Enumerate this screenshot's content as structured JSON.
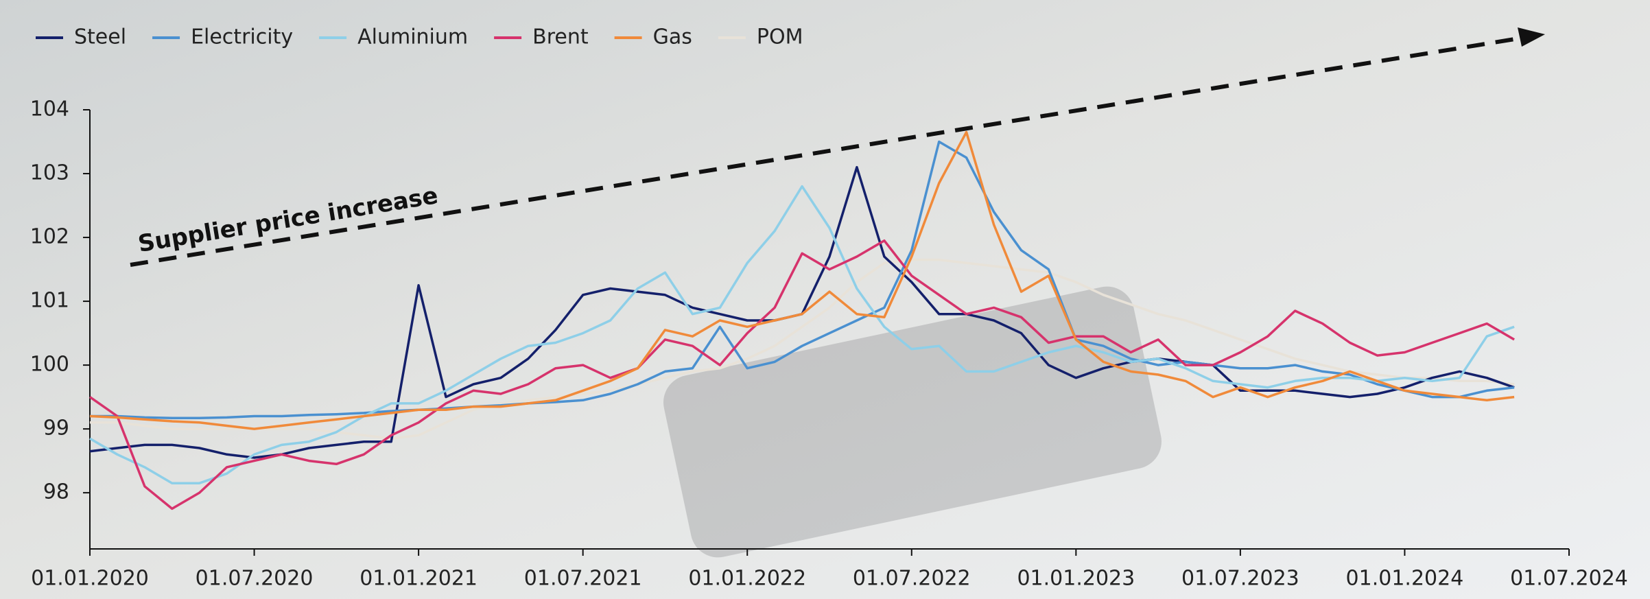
{
  "chart_data": {
    "type": "line",
    "annotation": "Supplier price increase",
    "x": [
      "01.01.2020",
      "01.02.2020",
      "01.03.2020",
      "01.04.2020",
      "01.05.2020",
      "01.06.2020",
      "01.07.2020",
      "01.08.2020",
      "01.09.2020",
      "01.10.2020",
      "01.11.2020",
      "01.12.2020",
      "01.01.2021",
      "01.02.2021",
      "01.03.2021",
      "01.04.2021",
      "01.05.2021",
      "01.06.2021",
      "01.07.2021",
      "01.08.2021",
      "01.09.2021",
      "01.10.2021",
      "01.11.2021",
      "01.12.2021",
      "01.01.2022",
      "01.02.2022",
      "01.03.2022",
      "01.04.2022",
      "01.05.2022",
      "01.06.2022",
      "01.07.2022",
      "01.08.2022",
      "01.09.2022",
      "01.10.2022",
      "01.11.2022",
      "01.12.2022",
      "01.01.2023",
      "01.02.2023",
      "01.03.2023",
      "01.04.2023",
      "01.05.2023",
      "01.06.2023",
      "01.07.2023",
      "01.08.2023",
      "01.09.2023",
      "01.10.2023",
      "01.11.2023",
      "01.12.2023",
      "01.01.2024",
      "01.02.2024",
      "01.03.2024",
      "01.04.2024",
      "01.05.2024"
    ],
    "series": [
      {
        "name": "Steel",
        "color": "#14206b",
        "values": [
          98.65,
          98.7,
          98.75,
          98.75,
          98.7,
          98.6,
          98.55,
          98.6,
          98.7,
          98.75,
          98.8,
          98.8,
          101.25,
          99.5,
          99.7,
          99.8,
          100.1,
          100.55,
          101.1,
          101.2,
          101.15,
          101.1,
          100.9,
          100.8,
          100.7,
          100.7,
          100.8,
          101.7,
          103.1,
          101.7,
          101.3,
          100.8,
          100.8,
          100.7,
          100.5,
          100.0,
          99.8,
          99.95,
          100.05,
          100.1,
          100.05,
          100.0,
          99.6,
          99.6,
          99.6,
          99.55,
          99.5,
          99.55,
          99.65,
          99.8,
          99.9,
          99.8,
          99.65
        ]
      },
      {
        "name": "Electricity",
        "color": "#4a90d0",
        "values": [
          99.2,
          99.2,
          99.18,
          99.17,
          99.17,
          99.18,
          99.2,
          99.2,
          99.22,
          99.23,
          99.25,
          99.28,
          99.3,
          99.32,
          99.35,
          99.37,
          99.4,
          99.42,
          99.45,
          99.55,
          99.7,
          99.9,
          99.95,
          100.6,
          99.95,
          100.05,
          100.3,
          100.5,
          100.7,
          100.9,
          101.8,
          103.5,
          103.25,
          102.4,
          101.8,
          101.5,
          100.4,
          100.3,
          100.1,
          100.0,
          100.05,
          100.0,
          99.95,
          99.95,
          100.0,
          99.9,
          99.85,
          99.7,
          99.6,
          99.5,
          99.5,
          99.6,
          99.65
        ]
      },
      {
        "name": "Aluminium",
        "color": "#8ecfe8",
        "values": [
          98.85,
          98.6,
          98.4,
          98.15,
          98.15,
          98.3,
          98.6,
          98.75,
          98.8,
          98.95,
          99.2,
          99.4,
          99.4,
          99.6,
          99.85,
          100.1,
          100.3,
          100.35,
          100.5,
          100.7,
          101.2,
          101.45,
          100.8,
          100.9,
          101.6,
          102.1,
          102.8,
          102.15,
          101.2,
          100.6,
          100.25,
          100.3,
          99.9,
          99.9,
          100.05,
          100.2,
          100.3,
          100.2,
          100.05,
          100.1,
          99.95,
          99.75,
          99.7,
          99.65,
          99.75,
          99.8,
          99.8,
          99.75,
          99.8,
          99.75,
          99.8,
          100.45,
          100.6
        ]
      },
      {
        "name": "Brent",
        "color": "#d6336c",
        "values": [
          99.5,
          99.2,
          98.1,
          97.75,
          98.0,
          98.4,
          98.5,
          98.6,
          98.5,
          98.45,
          98.6,
          98.9,
          99.1,
          99.4,
          99.6,
          99.55,
          99.7,
          99.95,
          100.0,
          99.8,
          99.95,
          100.4,
          100.3,
          100.0,
          100.5,
          100.9,
          101.75,
          101.5,
          101.7,
          101.95,
          101.4,
          101.1,
          100.8,
          100.9,
          100.75,
          100.35,
          100.45,
          100.45,
          100.2,
          100.4,
          100.0,
          100.0,
          100.2,
          100.45,
          100.85,
          100.65,
          100.35,
          100.15,
          100.2,
          100.35,
          100.5,
          100.65,
          100.4
        ]
      },
      {
        "name": "Gas",
        "color": "#f08a3a",
        "values": [
          99.2,
          99.18,
          99.15,
          99.12,
          99.1,
          99.05,
          99.0,
          99.05,
          99.1,
          99.15,
          99.2,
          99.25,
          99.3,
          99.3,
          99.35,
          99.35,
          99.4,
          99.45,
          99.6,
          99.75,
          99.95,
          100.55,
          100.45,
          100.7,
          100.6,
          100.7,
          100.8,
          101.15,
          100.8,
          100.75,
          101.7,
          102.85,
          103.65,
          102.2,
          101.15,
          101.4,
          100.4,
          100.05,
          99.9,
          99.85,
          99.75,
          99.5,
          99.65,
          99.5,
          99.65,
          99.75,
          99.9,
          99.75,
          99.6,
          99.55,
          99.5,
          99.45,
          99.5
        ]
      },
      {
        "name": "POM",
        "color": "#e8e2d8",
        "values": [
          99.1,
          99.1,
          99.05,
          99.0,
          99.0,
          99.0,
          99.0,
          99.0,
          99.0,
          98.95,
          98.9,
          98.85,
          98.9,
          99.1,
          99.3,
          99.4,
          99.45,
          99.5,
          99.55,
          99.6,
          99.7,
          99.8,
          99.9,
          99.95,
          100.1,
          100.3,
          100.6,
          100.9,
          101.3,
          101.6,
          101.65,
          101.65,
          101.6,
          101.55,
          101.5,
          101.45,
          101.3,
          101.1,
          100.95,
          100.8,
          100.7,
          100.55,
          100.4,
          100.25,
          100.1,
          100.0,
          99.9,
          99.85,
          99.8,
          99.8,
          99.75,
          99.75,
          99.7
        ]
      }
    ],
    "xlim": [
      "01.01.2020",
      "01.07.2024"
    ],
    "xticks": [
      "01.01.2020",
      "01.07.2020",
      "01.01.2021",
      "01.07.2021",
      "01.01.2022",
      "01.07.2022",
      "01.01.2023",
      "01.07.2023",
      "01.01.2024",
      "01.07.2024"
    ],
    "ylim": [
      97.12,
      104
    ],
    "yticks": [
      98,
      99,
      100,
      101,
      102,
      103,
      104
    ],
    "legend": "top-left"
  }
}
